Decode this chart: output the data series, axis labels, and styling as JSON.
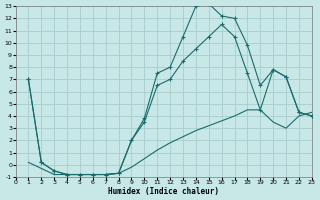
{
  "xlabel": "Humidex (Indice chaleur)",
  "bg_color": "#c8e8e8",
  "grid_color": "#a8cccc",
  "line_color": "#1a6b6b",
  "xlim": [
    0,
    23
  ],
  "ylim": [
    -1,
    13
  ],
  "xticks": [
    0,
    1,
    2,
    3,
    4,
    5,
    6,
    7,
    8,
    9,
    10,
    11,
    12,
    13,
    14,
    15,
    16,
    17,
    18,
    19,
    20,
    21,
    22,
    23
  ],
  "yticks": [
    -1,
    0,
    1,
    2,
    3,
    4,
    5,
    6,
    7,
    8,
    9,
    10,
    11,
    12,
    13
  ],
  "curve1_x": [
    1,
    2,
    3,
    4,
    5,
    6,
    7,
    8,
    9,
    10,
    11,
    12,
    13,
    14,
    15,
    16,
    17,
    18,
    19,
    20,
    21,
    22,
    23
  ],
  "curve1_y": [
    7.0,
    0.2,
    -0.5,
    -0.8,
    -0.8,
    -0.8,
    -0.8,
    -0.7,
    2.0,
    3.8,
    7.5,
    8.0,
    10.5,
    13.0,
    13.2,
    12.2,
    12.0,
    9.8,
    6.5,
    7.8,
    7.2,
    4.3,
    4.0
  ],
  "curve2_x": [
    1,
    2,
    3,
    4,
    5,
    6,
    7,
    8,
    9,
    10,
    11,
    12,
    13,
    14,
    15,
    16,
    17,
    18,
    19,
    20,
    21,
    22,
    23
  ],
  "curve2_y": [
    7.0,
    0.2,
    -0.5,
    -0.8,
    -0.8,
    -0.8,
    -0.8,
    -0.7,
    2.0,
    3.5,
    6.5,
    7.0,
    8.5,
    9.5,
    10.5,
    11.5,
    10.5,
    7.5,
    4.5,
    7.8,
    7.2,
    4.3,
    4.0
  ],
  "curve3_x": [
    1,
    2,
    3,
    4,
    5,
    6,
    7,
    8,
    9,
    10,
    11,
    12,
    13,
    14,
    15,
    16,
    17,
    18,
    19,
    20,
    21,
    22,
    23
  ],
  "curve3_y": [
    0.2,
    -0.3,
    -0.8,
    -0.8,
    -0.8,
    -0.8,
    -0.8,
    -0.7,
    -0.2,
    0.5,
    1.2,
    1.8,
    2.3,
    2.8,
    3.2,
    3.6,
    4.0,
    4.5,
    4.5,
    3.5,
    3.0,
    4.0,
    4.3
  ]
}
